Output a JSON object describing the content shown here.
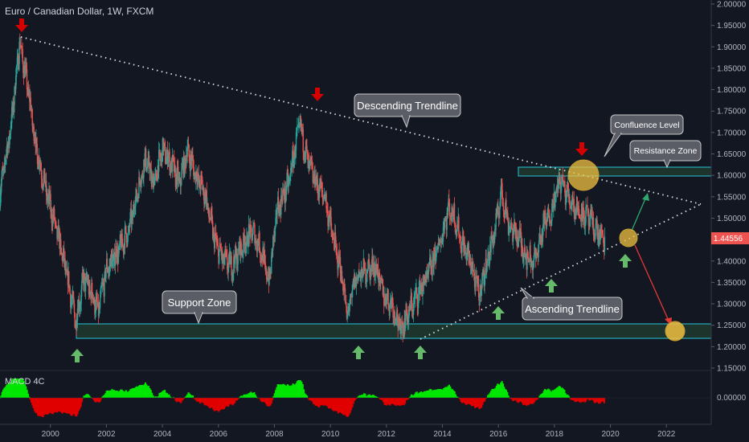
{
  "title": "Euro / Canadian Dollar, 1W, FXCM",
  "macd_label": "MACD 4C",
  "price_tag": "1.44556",
  "annotations": {
    "descending": "Descending Trendline",
    "confluence": "Confluence Level",
    "resistance": "Resistance Zone",
    "support": "Support Zone",
    "ascending": "Ascending Trendline"
  },
  "colors": {
    "background": "#131722",
    "bull": "#26a69a",
    "bear": "#ef5350",
    "tag": "#ef5350",
    "zone_fill": "#1e3a2e",
    "zone_border": "#26c6da",
    "highlight": "#f0c040",
    "up_arrow": "#66bb6a",
    "down_arrow": "#d50000",
    "macd_pos": "#00e600",
    "macd_neg": "#e00000"
  },
  "chart_data": {
    "type": "candlestick",
    "ylim": [
      1.15,
      2.0
    ],
    "xlim": [
      1998.2,
      2023.6
    ],
    "y_ticks": [
      "2.00000",
      "1.95000",
      "1.90000",
      "1.85000",
      "1.80000",
      "1.75000",
      "1.70000",
      "1.65000",
      "1.60000",
      "1.55000",
      "1.50000",
      "1.45000",
      "1.40000",
      "1.35000",
      "1.30000",
      "1.25000",
      "1.20000",
      "1.15000"
    ],
    "x_ticks": [
      "2000",
      "2002",
      "2004",
      "2006",
      "2008",
      "2010",
      "2012",
      "2014",
      "2016",
      "2018",
      "2020",
      "2022"
    ],
    "macd_ticks": [
      "0.00000"
    ],
    "price_path": [
      [
        1998.2,
        1.56
      ],
      [
        1998.6,
        1.72
      ],
      [
        1998.9,
        1.91
      ],
      [
        1999.2,
        1.8
      ],
      [
        1999.5,
        1.66
      ],
      [
        1999.9,
        1.55
      ],
      [
        2000.3,
        1.45
      ],
      [
        2000.7,
        1.33
      ],
      [
        2000.9,
        1.26
      ],
      [
        2001.2,
        1.36
      ],
      [
        2001.5,
        1.32
      ],
      [
        2001.7,
        1.28
      ],
      [
        2002.0,
        1.38
      ],
      [
        2002.4,
        1.42
      ],
      [
        2002.8,
        1.47
      ],
      [
        2003.1,
        1.56
      ],
      [
        2003.4,
        1.64
      ],
      [
        2003.7,
        1.58
      ],
      [
        2004.0,
        1.66
      ],
      [
        2004.3,
        1.63
      ],
      [
        2004.6,
        1.58
      ],
      [
        2004.9,
        1.66
      ],
      [
        2005.2,
        1.6
      ],
      [
        2005.5,
        1.56
      ],
      [
        2005.9,
        1.44
      ],
      [
        2006.2,
        1.4
      ],
      [
        2006.5,
        1.39
      ],
      [
        2006.8,
        1.43
      ],
      [
        2007.2,
        1.47
      ],
      [
        2007.5,
        1.43
      ],
      [
        2007.8,
        1.35
      ],
      [
        2008.1,
        1.52
      ],
      [
        2008.5,
        1.58
      ],
      [
        2008.9,
        1.72
      ],
      [
        2009.2,
        1.63
      ],
      [
        2009.5,
        1.58
      ],
      [
        2009.8,
        1.55
      ],
      [
        2010.1,
        1.45
      ],
      [
        2010.4,
        1.37
      ],
      [
        2010.6,
        1.27
      ],
      [
        2010.9,
        1.36
      ],
      [
        2011.3,
        1.38
      ],
      [
        2011.6,
        1.39
      ],
      [
        2011.9,
        1.32
      ],
      [
        2012.2,
        1.3
      ],
      [
        2012.5,
        1.24
      ],
      [
        2012.8,
        1.28
      ],
      [
        2013.1,
        1.32
      ],
      [
        2013.5,
        1.37
      ],
      [
        2013.9,
        1.44
      ],
      [
        2014.2,
        1.52
      ],
      [
        2014.4,
        1.51
      ],
      [
        2014.7,
        1.44
      ],
      [
        2015.0,
        1.4
      ],
      [
        2015.3,
        1.32
      ],
      [
        2015.6,
        1.4
      ],
      [
        2015.9,
        1.48
      ],
      [
        2016.1,
        1.56
      ],
      [
        2016.4,
        1.48
      ],
      [
        2016.7,
        1.46
      ],
      [
        2017.0,
        1.41
      ],
      [
        2017.3,
        1.4
      ],
      [
        2017.6,
        1.48
      ],
      [
        2017.9,
        1.52
      ],
      [
        2018.2,
        1.59
      ],
      [
        2018.5,
        1.55
      ],
      [
        2018.8,
        1.52
      ],
      [
        2019.2,
        1.5
      ],
      [
        2019.5,
        1.47
      ],
      [
        2019.8,
        1.445
      ]
    ]
  }
}
